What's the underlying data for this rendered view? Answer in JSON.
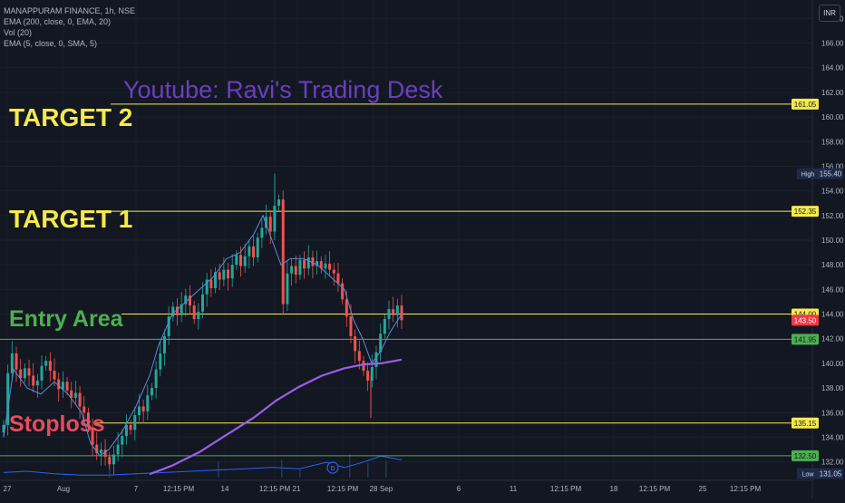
{
  "legend": {
    "symbol": "MANAPPURAM FINANCE, 1h, NSE",
    "indicators": [
      "EMA (200, close, 0, EMA, 20)",
      "Vol (20)",
      "EMA (5, close, 0, SMA, 5)"
    ]
  },
  "currency": "INR",
  "watermark": "Youtube: Ravi's Trading Desk",
  "colors": {
    "background": "#131722",
    "up": "#26a69a",
    "down": "#ef5350",
    "ema200": "#9c5ee8",
    "ema5": "#5b8bd9",
    "level_yellow": "#f5ea4c",
    "level_green": "#4caf50",
    "watermark": "#6a3fc0",
    "label_target": "#f5ea4c",
    "label_entry": "#4caf50",
    "label_stop": "#e74c5b",
    "volume": "#2962ff"
  },
  "chart_data": {
    "type": "line",
    "title": "MANAPPURAM FINANCE, 1h, NSE",
    "xlabel": "",
    "ylabel": "",
    "ylim": [
      130.5,
      169.5
    ],
    "y_ticks": [
      132.0,
      134.0,
      136.0,
      138.0,
      140.0,
      142.0,
      144.0,
      146.0,
      148.0,
      150.0,
      152.0,
      154.0,
      156.0,
      158.0,
      160.0,
      162.0,
      164.0,
      166.0,
      168.0
    ],
    "x_ticks": [
      "27",
      "Aug",
      "7",
      "12:15 PM",
      "14",
      "12:15 PM",
      "21",
      "12:15 PM",
      "28",
      "Sep",
      "6",
      "11",
      "12:15 PM",
      "18",
      "12:15 PM",
      "25",
      "12:15 PM"
    ],
    "horizontal_levels": [
      {
        "label": "TARGET 2",
        "value": 161.05,
        "price_label": "161.05",
        "color": "yellow"
      },
      {
        "label": "TARGET 1",
        "value": 152.35,
        "price_label": "152.35",
        "color": "yellow"
      },
      {
        "label": "Entry Area",
        "value": 144.0,
        "price_label": "144.00",
        "color": "yellow"
      },
      {
        "label": "",
        "value": 141.95,
        "price_label": "141.95",
        "color": "green"
      },
      {
        "label": "Stoploss",
        "value": 135.15,
        "price_label": "135.15",
        "color": "yellow"
      },
      {
        "label": "",
        "value": 132.5,
        "price_label": "132.50",
        "color": "green"
      }
    ],
    "current_price": {
      "value": 143.5,
      "price_label": "143.50"
    },
    "high": {
      "label": "High",
      "value": 155.4,
      "price_label": "155.40"
    },
    "low": {
      "label": "Low",
      "value": 131.05,
      "price_label": "131.05"
    },
    "series": [
      {
        "name": "EMA (200, close, 0, EMA, 20)",
        "x": [
          165,
          190,
          220,
          250,
          280,
          305,
          330,
          355,
          380,
          400,
          420,
          443
        ],
        "values": [
          131.0,
          131.7,
          132.8,
          134.2,
          135.6,
          137.0,
          138.1,
          139.0,
          139.6,
          139.9,
          140.0,
          140.3
        ]
      },
      {
        "name": "EMA (5, close, 0, SMA, 5)",
        "x": [
          4,
          15,
          30,
          45,
          60,
          75,
          90,
          100,
          110,
          120,
          135,
          150,
          165,
          175,
          190,
          205,
          220,
          235,
          250,
          265,
          280,
          290,
          300,
          310,
          320,
          335,
          350,
          365,
          380,
          390,
          400,
          410,
          420,
          430,
          443
        ],
        "values": [
          134.0,
          139.5,
          138.0,
          137.5,
          138.5,
          137.5,
          136.0,
          133.5,
          132.5,
          133.0,
          134.5,
          136.5,
          139.0,
          141.5,
          144.0,
          145.0,
          146.0,
          147.0,
          148.5,
          149.0,
          150.5,
          152.0,
          150.0,
          148.0,
          148.5,
          148.5,
          148.0,
          147.0,
          146.0,
          143.5,
          142.0,
          140.0,
          141.0,
          142.5,
          144.0
        ]
      }
    ],
    "candles": {
      "x_start": 4,
      "x_end": 443,
      "closes": [
        135.0,
        139.2,
        140.8,
        139.5,
        138.8,
        139.6,
        139.0,
        138.2,
        138.6,
        139.8,
        140.2,
        139.4,
        138.7,
        137.9,
        138.5,
        137.8,
        137.2,
        137.6,
        136.5,
        136.0,
        134.8,
        133.4,
        132.7,
        133.0,
        132.4,
        131.8,
        132.6,
        133.4,
        134.1,
        135.0,
        134.6,
        135.8,
        136.5,
        136.1,
        137.4,
        138.0,
        139.5,
        140.8,
        142.2,
        143.8,
        144.6,
        143.9,
        144.8,
        145.5,
        144.7,
        143.6,
        144.2,
        145.6,
        146.8,
        146.1,
        147.4,
        146.8,
        147.6,
        146.9,
        148.0,
        148.8,
        147.9,
        148.7,
        149.5,
        148.6,
        150.2,
        151.0,
        151.9,
        150.7,
        152.8,
        153.3,
        144.8,
        147.3,
        147.9,
        147.2,
        148.4,
        147.7,
        148.6,
        147.9,
        148.3,
        147.7,
        148.1,
        147.6,
        147.3,
        146.5,
        145.2,
        143.8,
        142.2,
        141.0,
        140.2,
        139.4,
        138.6,
        139.7,
        140.9,
        142.4,
        143.6,
        144.4,
        143.9,
        144.7,
        143.5
      ]
    },
    "volume": {
      "x": [
        4,
        30,
        60,
        90,
        120,
        150,
        180,
        210,
        240,
        270,
        300,
        330,
        360,
        380,
        400,
        420,
        443
      ],
      "values": [
        0.2,
        0.25,
        0.15,
        0.1,
        0.1,
        0.15,
        0.2,
        0.25,
        0.3,
        0.35,
        0.4,
        0.35,
        0.6,
        0.4,
        0.6,
        0.85,
        0.7
      ]
    }
  }
}
